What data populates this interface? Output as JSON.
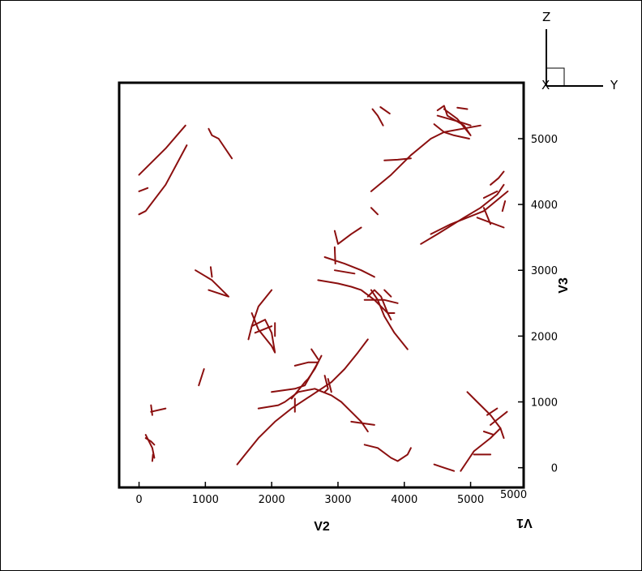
{
  "chart_data": {
    "type": "line",
    "xlabel": "V2",
    "ylabel": "V3",
    "depth_label": "V1",
    "xlim": [
      -300,
      5800
    ],
    "ylim": [
      -300,
      5850
    ],
    "x_ticks": [
      "0",
      "1000",
      "2000",
      "3000",
      "4000",
      "5000"
    ],
    "y_ticks": [
      "0",
      "1000",
      "2000",
      "3000",
      "4000",
      "5000"
    ],
    "depth_tick": "5000",
    "triad": {
      "z": "Z",
      "y": "Y",
      "x": "X"
    },
    "grid": false,
    "line_color": "#8b0f0f",
    "segments": [
      [
        [
          0,
          4450
        ],
        [
          400,
          4850
        ],
        [
          700,
          5200
        ]
      ],
      [
        [
          0,
          3850
        ],
        [
          100,
          3900
        ],
        [
          400,
          4300
        ],
        [
          720,
          4900
        ]
      ],
      [
        [
          0,
          4200
        ],
        [
          130,
          4250
        ]
      ],
      [
        [
          1050,
          5150
        ],
        [
          1100,
          5050
        ],
        [
          1200,
          5000
        ],
        [
          1400,
          4700
        ]
      ],
      [
        [
          3520,
          5450
        ],
        [
          3600,
          5350
        ],
        [
          3680,
          5200
        ]
      ],
      [
        [
          3640,
          5480
        ],
        [
          3780,
          5380
        ]
      ],
      [
        [
          4500,
          5430
        ],
        [
          4600,
          5500
        ],
        [
          4650,
          5350
        ],
        [
          4900,
          5200
        ],
        [
          5000,
          5050
        ],
        [
          4800,
          5300
        ],
        [
          4600,
          5450
        ]
      ],
      [
        [
          4500,
          5350
        ],
        [
          4850,
          5250
        ],
        [
          5000,
          5200
        ]
      ],
      [
        [
          4800,
          5470
        ],
        [
          4950,
          5450
        ]
      ],
      [
        [
          4450,
          5220
        ],
        [
          4600,
          5100
        ],
        [
          4750,
          5050
        ],
        [
          4980,
          5000
        ]
      ],
      [
        [
          3500,
          4200
        ],
        [
          3800,
          4450
        ],
        [
          4100,
          4750
        ],
        [
          4400,
          5000
        ],
        [
          4600,
          5100
        ],
        [
          5150,
          5200
        ]
      ],
      [
        [
          3700,
          4670
        ],
        [
          3900,
          4680
        ],
        [
          4100,
          4700
        ]
      ],
      [
        [
          3500,
          3950
        ],
        [
          3600,
          3850
        ]
      ],
      [
        [
          4250,
          3400
        ],
        [
          4500,
          3550
        ],
        [
          4900,
          3800
        ],
        [
          5150,
          3950
        ],
        [
          5400,
          4150
        ],
        [
          5500,
          4300
        ]
      ],
      [
        [
          4400,
          3550
        ],
        [
          4700,
          3700
        ],
        [
          5200,
          3900
        ],
        [
          5560,
          4200
        ]
      ],
      [
        [
          5100,
          3800
        ],
        [
          5500,
          3650
        ]
      ],
      [
        [
          5200,
          3950
        ],
        [
          5300,
          3700
        ]
      ],
      [
        [
          5300,
          4300
        ],
        [
          5420,
          4400
        ],
        [
          5500,
          4500
        ]
      ],
      [
        [
          5200,
          4100
        ],
        [
          5400,
          4200
        ]
      ],
      [
        [
          5480,
          3900
        ],
        [
          5520,
          4050
        ]
      ],
      [
        [
          2950,
          3600
        ],
        [
          3000,
          3400
        ],
        [
          3200,
          3550
        ],
        [
          3350,
          3650
        ]
      ],
      [
        [
          2950,
          3350
        ],
        [
          2960,
          3100
        ]
      ],
      [
        [
          2800,
          3200
        ],
        [
          3100,
          3100
        ],
        [
          3350,
          3000
        ],
        [
          3550,
          2900
        ]
      ],
      [
        [
          2950,
          3000
        ],
        [
          3250,
          2950
        ]
      ],
      [
        [
          2700,
          2850
        ],
        [
          3000,
          2800
        ],
        [
          3200,
          2750
        ],
        [
          3350,
          2700
        ],
        [
          3550,
          2550
        ],
        [
          3750,
          2350
        ],
        [
          3800,
          2250
        ]
      ],
      [
        [
          3400,
          2550
        ],
        [
          3700,
          2550
        ],
        [
          3900,
          2500
        ]
      ],
      [
        [
          3450,
          2600
        ],
        [
          3550,
          2700
        ],
        [
          3650,
          2600
        ],
        [
          3750,
          2350
        ],
        [
          3850,
          2350
        ]
      ],
      [
        [
          3500,
          2700
        ],
        [
          3600,
          2550
        ],
        [
          3700,
          2300
        ],
        [
          3850,
          2050
        ],
        [
          4050,
          1800
        ]
      ],
      [
        [
          3700,
          2700
        ],
        [
          3800,
          2600
        ]
      ],
      [
        [
          850,
          3000
        ],
        [
          1100,
          2850
        ],
        [
          1350,
          2600
        ],
        [
          1050,
          2700
        ]
      ],
      [
        [
          1080,
          3050
        ],
        [
          1100,
          2900
        ]
      ],
      [
        [
          1650,
          1950
        ],
        [
          1700,
          2150
        ],
        [
          1800,
          2450
        ],
        [
          2000,
          2700
        ]
      ],
      [
        [
          1700,
          2150
        ],
        [
          1900,
          2250
        ],
        [
          2000,
          2050
        ],
        [
          2050,
          1750
        ],
        [
          2000,
          1850
        ],
        [
          1800,
          2100
        ],
        [
          1700,
          2350
        ]
      ],
      [
        [
          1750,
          2050
        ],
        [
          2000,
          2150
        ]
      ],
      [
        [
          2050,
          2000
        ],
        [
          2050,
          2200
        ]
      ],
      [
        [
          900,
          1250
        ],
        [
          980,
          1500
        ]
      ],
      [
        [
          180,
          950
        ],
        [
          200,
          800
        ]
      ],
      [
        [
          180,
          850
        ],
        [
          400,
          900
        ]
      ],
      [
        [
          100,
          500
        ],
        [
          200,
          300
        ],
        [
          230,
          150
        ]
      ],
      [
        [
          100,
          450
        ],
        [
          180,
          400
        ],
        [
          230,
          350
        ]
      ],
      [
        [
          200,
          100
        ],
        [
          210,
          200
        ]
      ],
      [
        [
          1480,
          50
        ],
        [
          1600,
          200
        ],
        [
          1800,
          450
        ],
        [
          2050,
          700
        ],
        [
          2300,
          900
        ],
        [
          2600,
          1100
        ],
        [
          2900,
          1300
        ],
        [
          3100,
          1500
        ],
        [
          3300,
          1750
        ],
        [
          3450,
          1950
        ]
      ],
      [
        [
          1800,
          900
        ],
        [
          2100,
          950
        ],
        [
          2200,
          1000
        ],
        [
          2400,
          1150
        ],
        [
          2650,
          1200
        ],
        [
          2900,
          1100
        ],
        [
          3050,
          1000
        ],
        [
          3200,
          850
        ],
        [
          3350,
          700
        ],
        [
          3450,
          550
        ]
      ],
      [
        [
          2300,
          1050
        ],
        [
          2500,
          1300
        ],
        [
          2550,
          1350
        ],
        [
          2650,
          1500
        ],
        [
          2750,
          1700
        ]
      ],
      [
        [
          2000,
          1150
        ],
        [
          2350,
          1200
        ],
        [
          2500,
          1250
        ],
        [
          2700,
          1600
        ],
        [
          2550,
          1600
        ],
        [
          2350,
          1550
        ]
      ],
      [
        [
          2350,
          1050
        ],
        [
          2350,
          850
        ]
      ],
      [
        [
          2800,
          1400
        ],
        [
          2850,
          1200
        ],
        [
          2800,
          1150
        ]
      ],
      [
        [
          2850,
          1350
        ],
        [
          2900,
          1150
        ]
      ],
      [
        [
          2600,
          1800
        ],
        [
          2700,
          1650
        ]
      ],
      [
        [
          3200,
          700
        ],
        [
          3550,
          650
        ]
      ],
      [
        [
          3400,
          350
        ],
        [
          3600,
          300
        ],
        [
          3800,
          150
        ],
        [
          3900,
          100
        ],
        [
          4050,
          200
        ],
        [
          4100,
          300
        ]
      ],
      [
        [
          4450,
          50
        ],
        [
          4600,
          0
        ],
        [
          4750,
          -50
        ]
      ],
      [
        [
          4950,
          1150
        ],
        [
          5100,
          1000
        ],
        [
          5300,
          800
        ],
        [
          5450,
          600
        ],
        [
          5500,
          450
        ]
      ],
      [
        [
          5250,
          800
        ],
        [
          5400,
          900
        ]
      ],
      [
        [
          5200,
          550
        ],
        [
          5350,
          500
        ],
        [
          5450,
          600
        ],
        [
          5300,
          450
        ],
        [
          5050,
          250
        ],
        [
          4950,
          100
        ],
        [
          4850,
          -50
        ]
      ],
      [
        [
          5050,
          200
        ],
        [
          5300,
          200
        ]
      ],
      [
        [
          5300,
          650
        ],
        [
          5550,
          850
        ]
      ]
    ]
  }
}
